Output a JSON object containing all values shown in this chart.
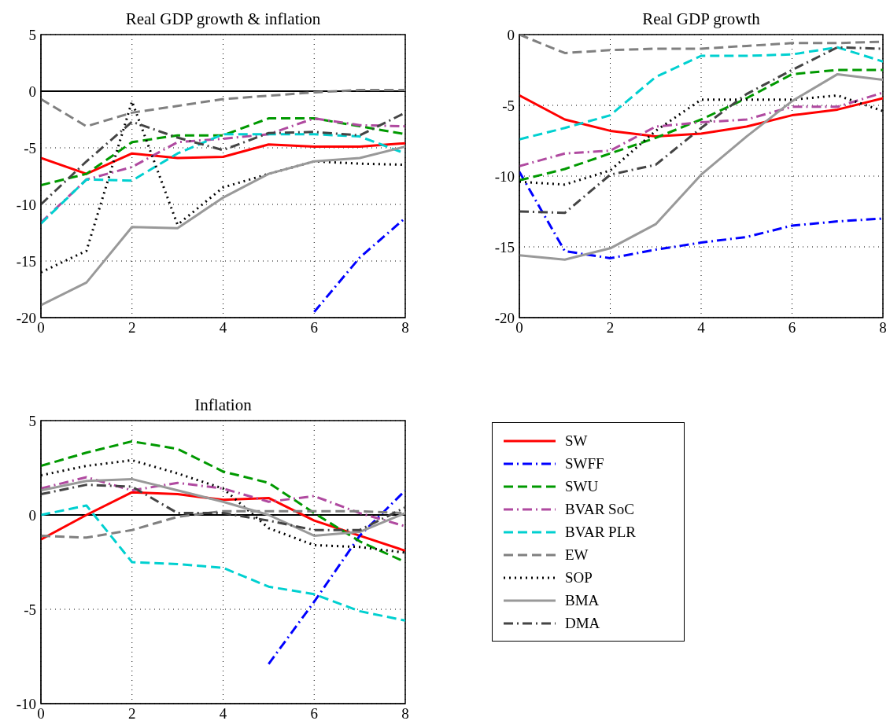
{
  "chart_data": [
    {
      "type": "line",
      "title": "Real GDP growth & inflation",
      "x": [
        0,
        1,
        2,
        3,
        4,
        5,
        6,
        7,
        8
      ],
      "xlim": [
        0,
        8
      ],
      "xticks": [
        0,
        2,
        4,
        6,
        8
      ],
      "ylim": [
        -20,
        5
      ],
      "yticks": [
        -20,
        -15,
        -10,
        -5,
        0,
        5
      ],
      "grid": true,
      "legend": false,
      "ref_lines": [
        {
          "axis": "y",
          "value": 0,
          "color": "#000000",
          "line_style": "solid"
        }
      ],
      "series": [
        {
          "color": "#ff0000",
          "line_style": "solid",
          "values": [
            -5.9,
            -7.3,
            -5.5,
            -5.9,
            -5.8,
            -4.7,
            -4.9,
            -4.9,
            -4.6
          ]
        },
        {
          "color": "#0000ff",
          "line_style": "dashdot",
          "values": [
            null,
            null,
            null,
            null,
            null,
            null,
            -19.5,
            -14.7,
            -11.2
          ]
        },
        {
          "color": "#009900",
          "line_style": "dashed",
          "values": [
            -8.3,
            -7.3,
            -4.5,
            -3.9,
            -3.9,
            -2.4,
            -2.4,
            -3.1,
            -3.8
          ]
        },
        {
          "color": "#b04aa0",
          "line_style": "dashdot",
          "values": [
            -11.6,
            -7.8,
            -6.7,
            -4.5,
            -4.2,
            -3.8,
            -2.4,
            -3.0,
            -3.1
          ]
        },
        {
          "color": "#00d0d0",
          "line_style": "dashed",
          "values": [
            -11.7,
            -7.8,
            -7.9,
            -5.5,
            -3.8,
            -3.8,
            -3.8,
            -4.0,
            -5.5
          ]
        },
        {
          "color": "#808080",
          "line_style": "dashed",
          "values": [
            -0.7,
            -3.1,
            -1.9,
            -1.3,
            -0.7,
            -0.4,
            -0.1,
            0.1,
            0.1
          ]
        },
        {
          "color": "#000000",
          "line_style": "dotted",
          "values": [
            -16.0,
            -14.1,
            -0.9,
            -11.8,
            -8.5,
            -7.3,
            -6.2,
            -6.4,
            -6.5
          ]
        },
        {
          "color": "#999999",
          "line_style": "solid",
          "values": [
            -18.9,
            -16.9,
            -12.0,
            -12.1,
            -9.4,
            -7.3,
            -6.2,
            -5.9,
            -4.9
          ]
        },
        {
          "color": "#444444",
          "line_style": "dashdot",
          "values": [
            -10.0,
            -6.2,
            -2.7,
            -4.1,
            -5.2,
            -3.7,
            -3.6,
            -3.9,
            -1.9
          ]
        }
      ]
    },
    {
      "type": "line",
      "title": "Real GDP growth",
      "x": [
        0,
        1,
        2,
        3,
        4,
        5,
        6,
        7,
        8
      ],
      "xlim": [
        0,
        8
      ],
      "xticks": [
        0,
        2,
        4,
        6,
        8
      ],
      "ylim": [
        -20,
        0
      ],
      "yticks": [
        -20,
        -15,
        -10,
        -5,
        0
      ],
      "grid": true,
      "legend": false,
      "series": [
        {
          "color": "#ff0000",
          "line_style": "solid",
          "values": [
            -4.3,
            -6.0,
            -6.8,
            -7.2,
            -7.0,
            -6.5,
            -5.7,
            -5.3,
            -4.5
          ]
        },
        {
          "color": "#0000ff",
          "line_style": "dashdot",
          "values": [
            -9.7,
            -15.3,
            -15.8,
            -15.2,
            -14.7,
            -14.3,
            -13.5,
            -13.2,
            -13.0
          ]
        },
        {
          "color": "#009900",
          "line_style": "dashed",
          "values": [
            -10.3,
            -9.5,
            -8.4,
            -7.3,
            -6.0,
            -4.5,
            -2.8,
            -2.5,
            -2.5
          ]
        },
        {
          "color": "#b04aa0",
          "line_style": "dashdot",
          "values": [
            -9.3,
            -8.4,
            -8.2,
            -6.5,
            -6.2,
            -6.0,
            -5.1,
            -5.1,
            -4.1
          ]
        },
        {
          "color": "#00d0d0",
          "line_style": "dashed",
          "values": [
            -7.4,
            -6.6,
            -5.7,
            -3.0,
            -1.5,
            -1.5,
            -1.4,
            -0.9,
            -1.9
          ]
        },
        {
          "color": "#808080",
          "line_style": "dashed",
          "values": [
            0,
            -1.3,
            -1.1,
            -1.0,
            -1.0,
            -0.8,
            -0.6,
            -0.6,
            -0.5
          ]
        },
        {
          "color": "#000000",
          "line_style": "dotted",
          "values": [
            -10.4,
            -10.6,
            -9.6,
            -6.8,
            -4.6,
            -4.6,
            -4.6,
            -4.3,
            -5.4
          ]
        },
        {
          "color": "#999999",
          "line_style": "solid",
          "values": [
            -15.6,
            -15.9,
            -15.1,
            -13.4,
            -9.9,
            -7.2,
            -4.7,
            -2.8,
            -3.2
          ]
        },
        {
          "color": "#444444",
          "line_style": "dashdot",
          "values": [
            -12.5,
            -12.6,
            -9.9,
            -9.2,
            -6.6,
            -4.2,
            -2.5,
            -0.9,
            -1.0
          ]
        }
      ]
    },
    {
      "type": "line",
      "title": "Inflation",
      "x": [
        0,
        1,
        2,
        3,
        4,
        5,
        6,
        7,
        8
      ],
      "xlim": [
        0,
        8
      ],
      "xticks": [
        0,
        2,
        4,
        6,
        8
      ],
      "ylim": [
        -10,
        5
      ],
      "yticks": [
        -10,
        -5,
        0,
        5
      ],
      "grid": true,
      "legend": "right",
      "ref_lines": [
        {
          "axis": "y",
          "value": 0,
          "color": "#000000",
          "line_style": "solid"
        }
      ],
      "series": [
        {
          "name": "SW",
          "color": "#ff0000",
          "line_style": "solid",
          "values": [
            -1.3,
            0,
            1.2,
            1.1,
            0.8,
            0.9,
            -0.3,
            -1.1,
            -1.9
          ]
        },
        {
          "name": "SWFF",
          "color": "#0000ff",
          "line_style": "dashdot",
          "values": [
            null,
            null,
            null,
            null,
            null,
            -7.9,
            -4.6,
            -1.1,
            1.3
          ]
        },
        {
          "name": "SWU",
          "color": "#009900",
          "line_style": "dashed",
          "values": [
            2.6,
            3.3,
            3.9,
            3.5,
            2.3,
            1.7,
            0.1,
            -1.4,
            -2.5
          ]
        },
        {
          "name": "BVAR SoC",
          "color": "#b04aa0",
          "line_style": "dashdot",
          "values": [
            1.4,
            2.0,
            1.3,
            1.7,
            1.4,
            0.7,
            1.0,
            0.1,
            -0.6
          ]
        },
        {
          "name": "BVAR PLR",
          "color": "#00d0d0",
          "line_style": "dashed",
          "values": [
            0,
            0.5,
            -2.5,
            -2.6,
            -2.8,
            -3.8,
            -4.2,
            -5.1,
            -5.6
          ]
        },
        {
          "name": "EW",
          "color": "#808080",
          "line_style": "dashed",
          "values": [
            -1.1,
            -1.2,
            -0.8,
            -0.1,
            0.2,
            0.2,
            0.2,
            0.2,
            0.1
          ]
        },
        {
          "name": "SOP",
          "color": "#000000",
          "line_style": "dotted",
          "values": [
            2.1,
            2.6,
            2.9,
            2.2,
            1.4,
            -0.7,
            -1.6,
            -1.7,
            -2.0
          ]
        },
        {
          "name": "BMA",
          "color": "#999999",
          "line_style": "solid",
          "values": [
            1.3,
            1.8,
            1.9,
            1.3,
            0.7,
            0,
            -1.1,
            -0.9,
            0.1
          ]
        },
        {
          "name": "DMA",
          "color": "#444444",
          "line_style": "dashdot",
          "values": [
            1.1,
            1.6,
            1.5,
            0.1,
            0.1,
            -0.3,
            -0.8,
            -0.8,
            0.4
          ]
        }
      ]
    }
  ]
}
